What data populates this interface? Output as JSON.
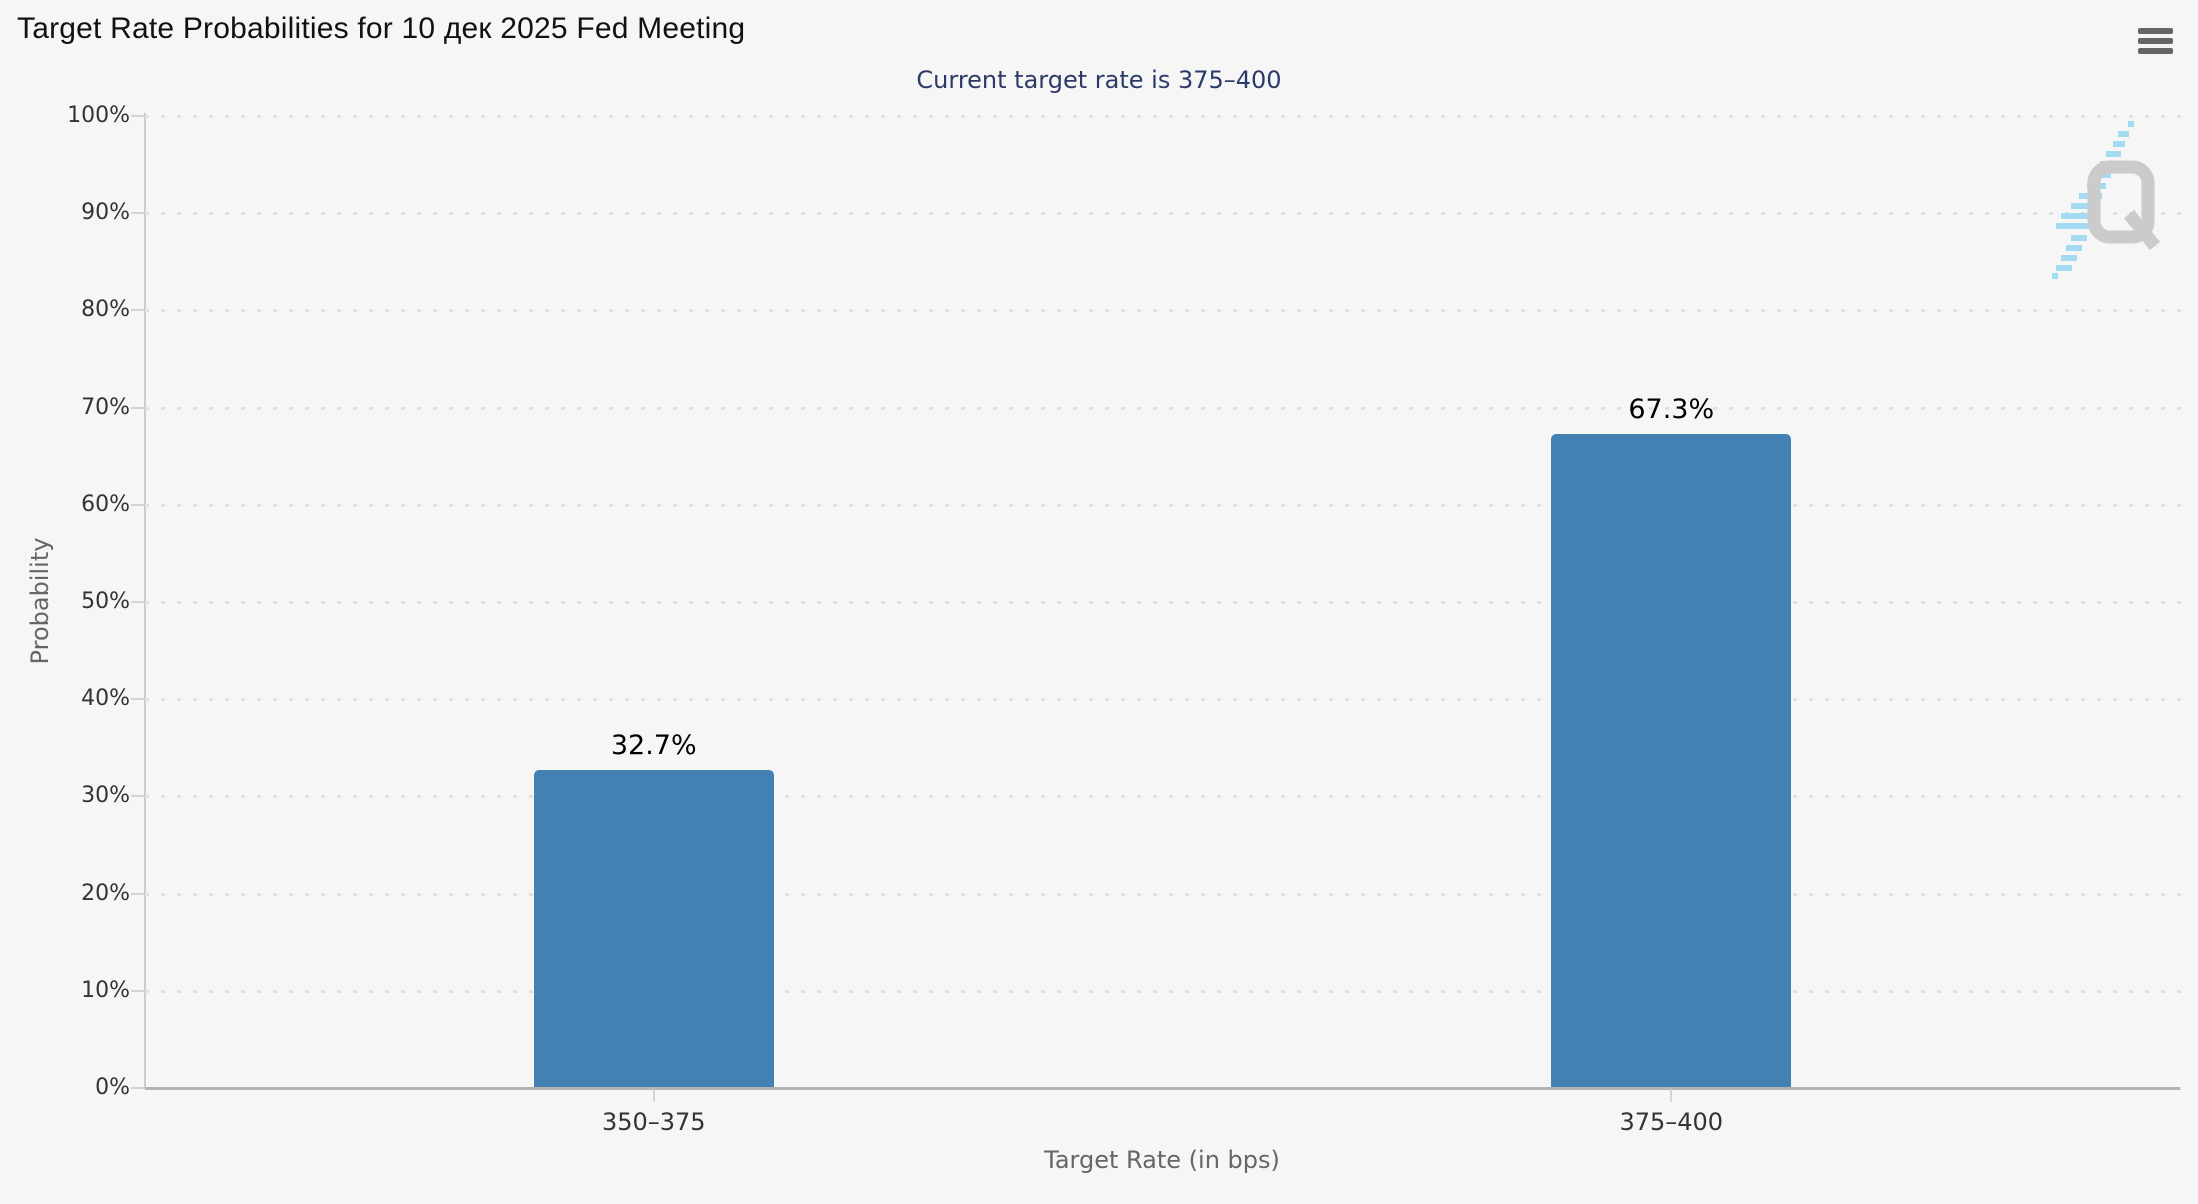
{
  "chart_data": {
    "type": "bar",
    "title": "Target Rate Probabilities for 10 дек 2025 Fed Meeting",
    "subtitle": "Current target rate is 375–400",
    "categories": [
      "350–375",
      "375–400"
    ],
    "values": [
      32.7,
      67.3
    ],
    "data_labels": [
      "32.7%",
      "67.3%"
    ],
    "xlabel": "Target Rate (in bps)",
    "ylabel": "Probability",
    "ylim": [
      0,
      100
    ],
    "y_tick_labels": [
      "100%",
      "90%",
      "80%",
      "70%",
      "60%",
      "50%",
      "40%",
      "30%",
      "20%",
      "10%",
      "0%"
    ],
    "grid": "dotted-horizontal",
    "legend": "none",
    "bar_color": "#4381b5"
  },
  "watermark": {
    "letter": "Q"
  },
  "icons": {
    "menu": "hamburger-menu-icon"
  },
  "colors": {
    "background": "#f6f6f6",
    "bar": "#4381b5",
    "title": "#111111",
    "subtitle": "#2b3a67",
    "axis_labels": "#333333",
    "axis_titles": "#666666",
    "grid_dot": "#e1e1e1",
    "axis_line": "#cccccc",
    "baseline": "#b3b3b3",
    "menu_icon": "#666666",
    "watermark_q": "#cbcbcb",
    "watermark_dash": "#a3dcf2"
  }
}
